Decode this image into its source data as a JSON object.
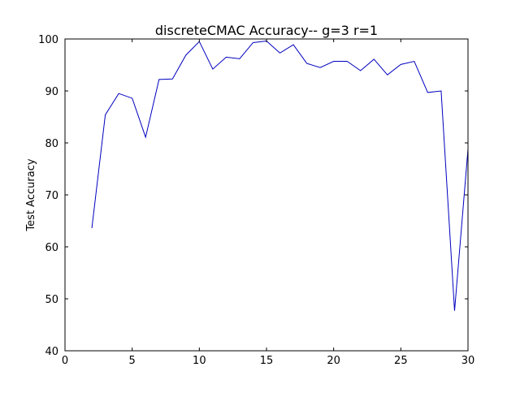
{
  "chart_data": {
    "type": "line",
    "title": "discreteCMAC Accuracy-- g=3 r=1",
    "xlabel": "",
    "ylabel": "Test Accuracy",
    "xlim": [
      0,
      30
    ],
    "ylim": [
      40,
      100
    ],
    "x_ticks": [
      "0",
      "5",
      "10",
      "15",
      "20",
      "25",
      "30"
    ],
    "y_ticks": [
      "40",
      "50",
      "60",
      "70",
      "80",
      "90",
      "100"
    ],
    "grid": false,
    "legend": "none",
    "line_color": "#0000bf",
    "series": [
      {
        "x": [
          2,
          3,
          4,
          5,
          6,
          7,
          8,
          9,
          10,
          11,
          12,
          13,
          14,
          15,
          16,
          17,
          18,
          19,
          20,
          21,
          22,
          23,
          24,
          25,
          26,
          27,
          28,
          29,
          30
        ],
        "values": [
          63.6,
          85.4,
          89.5,
          88.6,
          81.1,
          92.2,
          92.3,
          96.9,
          99.5,
          94.2,
          96.5,
          96.2,
          99.3,
          99.6,
          97.3,
          98.9,
          95.3,
          94.5,
          95.7,
          95.7,
          93.9,
          96.1,
          93.1,
          95.1,
          95.7,
          89.7,
          90.0,
          47.7,
          78.8
        ]
      }
    ]
  }
}
